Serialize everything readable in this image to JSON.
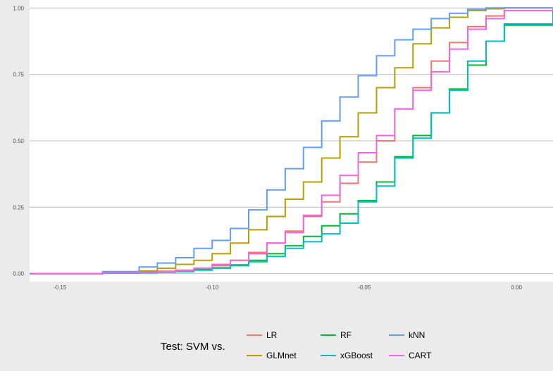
{
  "chart_data": {
    "type": "line",
    "title": "",
    "xlabel": "",
    "ylabel": "",
    "xlim": [
      -0.16,
      0.012
    ],
    "ylim": [
      -0.03,
      1.03
    ],
    "x_ticks": [
      -0.15,
      -0.1,
      -0.05,
      0.0
    ],
    "x_tick_labels": [
      "-0.15",
      "-0.10",
      "-0.05",
      "0.00"
    ],
    "y_ticks": [
      0.0,
      0.25,
      0.5,
      0.75,
      1.0
    ],
    "y_tick_labels": [
      "0.00",
      "0.25",
      "0.50",
      "0.75",
      "1.00"
    ],
    "grid": true,
    "legend": {
      "title": "Test: SVM vs.",
      "placement": "bottom"
    },
    "series": [
      {
        "name": "LR",
        "color": "#F8766D",
        "x": [
          -0.16,
          -0.136,
          -0.124,
          -0.118,
          -0.112,
          -0.106,
          -0.1,
          -0.094,
          -0.088,
          -0.082,
          -0.076,
          -0.07,
          -0.064,
          -0.058,
          -0.052,
          -0.046,
          -0.04,
          -0.034,
          -0.028,
          -0.022,
          -0.016,
          -0.01,
          -0.004,
          0.012
        ],
        "y": [
          0.0,
          0.003,
          0.005,
          0.009,
          0.013,
          0.02,
          0.03,
          0.05,
          0.08,
          0.115,
          0.16,
          0.215,
          0.27,
          0.34,
          0.42,
          0.5,
          0.62,
          0.7,
          0.8,
          0.87,
          0.93,
          0.97,
          0.99,
          1.0
        ]
      },
      {
        "name": "GLMnet",
        "color": "#B79F00",
        "x": [
          -0.16,
          -0.136,
          -0.124,
          -0.118,
          -0.112,
          -0.106,
          -0.1,
          -0.094,
          -0.088,
          -0.082,
          -0.076,
          -0.07,
          -0.064,
          -0.058,
          -0.052,
          -0.046,
          -0.04,
          -0.034,
          -0.028,
          -0.022,
          -0.016,
          -0.01,
          -0.004,
          0.012
        ],
        "y": [
          0.0,
          0.005,
          0.01,
          0.02,
          0.035,
          0.05,
          0.075,
          0.115,
          0.165,
          0.215,
          0.28,
          0.345,
          0.435,
          0.515,
          0.605,
          0.7,
          0.775,
          0.865,
          0.925,
          0.965,
          0.99,
          0.997,
          1.0,
          1.0
        ]
      },
      {
        "name": "RF",
        "color": "#00BA38",
        "x": [
          -0.16,
          -0.136,
          -0.124,
          -0.118,
          -0.112,
          -0.106,
          -0.1,
          -0.094,
          -0.088,
          -0.082,
          -0.076,
          -0.07,
          -0.064,
          -0.058,
          -0.052,
          -0.046,
          -0.04,
          -0.034,
          -0.028,
          -0.022,
          -0.016,
          -0.01,
          -0.004,
          0.012
        ],
        "y": [
          0.0,
          0.002,
          0.003,
          0.006,
          0.01,
          0.015,
          0.022,
          0.033,
          0.05,
          0.075,
          0.105,
          0.14,
          0.18,
          0.225,
          0.275,
          0.345,
          0.44,
          0.52,
          0.605,
          0.695,
          0.785,
          0.875,
          0.935,
          0.99
        ]
      },
      {
        "name": "xGBoost",
        "color": "#00BFC4",
        "x": [
          -0.16,
          -0.136,
          -0.124,
          -0.118,
          -0.112,
          -0.106,
          -0.1,
          -0.094,
          -0.088,
          -0.082,
          -0.076,
          -0.07,
          -0.064,
          -0.058,
          -0.052,
          -0.046,
          -0.04,
          -0.034,
          -0.028,
          -0.022,
          -0.016,
          -0.01,
          -0.004,
          0.012
        ],
        "y": [
          0.0,
          0.002,
          0.003,
          0.005,
          0.008,
          0.013,
          0.02,
          0.03,
          0.045,
          0.065,
          0.095,
          0.12,
          0.15,
          0.19,
          0.27,
          0.33,
          0.435,
          0.51,
          0.605,
          0.69,
          0.8,
          0.875,
          0.94,
          0.98
        ]
      },
      {
        "name": "kNN",
        "color": "#619CFF",
        "x": [
          -0.16,
          -0.136,
          -0.124,
          -0.118,
          -0.112,
          -0.106,
          -0.1,
          -0.094,
          -0.088,
          -0.082,
          -0.076,
          -0.07,
          -0.064,
          -0.058,
          -0.052,
          -0.046,
          -0.04,
          -0.034,
          -0.028,
          -0.022,
          -0.016,
          -0.01,
          -0.004,
          0.012
        ],
        "y": [
          0.0,
          0.008,
          0.025,
          0.04,
          0.06,
          0.095,
          0.125,
          0.17,
          0.24,
          0.315,
          0.395,
          0.475,
          0.575,
          0.665,
          0.745,
          0.82,
          0.88,
          0.92,
          0.96,
          0.98,
          0.995,
          1.0,
          1.0,
          1.0
        ]
      },
      {
        "name": "CART",
        "color": "#F564E3",
        "x": [
          -0.16,
          -0.136,
          -0.124,
          -0.118,
          -0.112,
          -0.106,
          -0.1,
          -0.094,
          -0.088,
          -0.082,
          -0.076,
          -0.07,
          -0.064,
          -0.058,
          -0.052,
          -0.046,
          -0.04,
          -0.034,
          -0.028,
          -0.022,
          -0.016,
          -0.01,
          -0.004,
          0.012
        ],
        "y": [
          0.0,
          0.003,
          0.005,
          0.008,
          0.012,
          0.02,
          0.035,
          0.05,
          0.075,
          0.115,
          0.155,
          0.22,
          0.295,
          0.37,
          0.455,
          0.52,
          0.62,
          0.69,
          0.76,
          0.845,
          0.92,
          0.96,
          0.99,
          1.0
        ]
      }
    ]
  }
}
